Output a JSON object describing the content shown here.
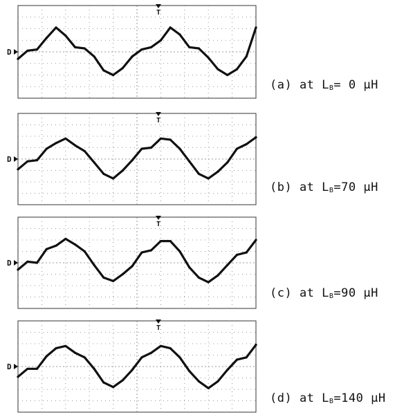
{
  "chart_data": [
    {
      "type": "line",
      "caption": {
        "prefix": "(a) at L",
        "sub": "B",
        "suffix": "= 0 μH"
      },
      "markers": {
        "trigger": "T",
        "ground": "D"
      },
      "grid": true,
      "axes": {
        "xlim": [
          0,
          10
        ],
        "ylim": [
          -4,
          4
        ]
      },
      "series": [
        {
          "x": [
            0.0,
            0.4,
            0.8,
            1.2,
            1.6,
            2.0,
            2.4,
            2.8,
            3.2,
            3.6,
            4.0,
            4.4,
            4.8,
            5.2,
            5.6,
            6.0,
            6.4,
            6.8,
            7.2,
            7.6,
            8.0,
            8.4,
            8.8,
            9.2,
            9.6,
            10.0
          ],
          "y": [
            -0.6,
            0.1,
            0.2,
            1.2,
            2.1,
            1.4,
            0.4,
            0.3,
            -0.4,
            -1.6,
            -2.0,
            -1.4,
            -0.4,
            0.2,
            0.4,
            1.0,
            2.1,
            1.5,
            0.4,
            0.3,
            -0.5,
            -1.5,
            -2.0,
            -1.5,
            -0.4,
            2.1
          ]
        }
      ]
    },
    {
      "type": "line",
      "caption": {
        "prefix": "(b) at L",
        "sub": "B",
        "suffix": "=70 μH"
      },
      "markers": {
        "trigger": "T",
        "ground": "D"
      },
      "grid": true,
      "axes": {
        "xlim": [
          0,
          10
        ],
        "ylim": [
          -4,
          4
        ]
      },
      "series": [
        {
          "x": [
            0.0,
            0.4,
            0.8,
            1.2,
            1.6,
            2.0,
            2.4,
            2.8,
            3.2,
            3.6,
            4.0,
            4.4,
            4.8,
            5.2,
            5.6,
            6.0,
            6.4,
            6.8,
            7.2,
            7.6,
            8.0,
            8.4,
            8.8,
            9.2,
            9.6,
            10.0
          ],
          "y": [
            -0.9,
            -0.2,
            -0.1,
            0.9,
            1.4,
            1.8,
            1.2,
            0.7,
            -0.3,
            -1.3,
            -1.7,
            -1.0,
            -0.1,
            0.9,
            1.0,
            1.8,
            1.7,
            0.9,
            -0.2,
            -1.3,
            -1.7,
            -1.1,
            -0.3,
            0.9,
            1.3,
            1.9
          ]
        }
      ]
    },
    {
      "type": "line",
      "caption": {
        "prefix": "(c) at L",
        "sub": "B",
        "suffix": "=90 μH"
      },
      "markers": {
        "trigger": "T",
        "ground": "D"
      },
      "grid": true,
      "axes": {
        "xlim": [
          0,
          10
        ],
        "ylim": [
          -4,
          4
        ]
      },
      "series": [
        {
          "x": [
            0.0,
            0.4,
            0.8,
            1.2,
            1.6,
            2.0,
            2.4,
            2.8,
            3.2,
            3.6,
            4.0,
            4.4,
            4.8,
            5.2,
            5.6,
            6.0,
            6.4,
            6.8,
            7.2,
            7.6,
            8.0,
            8.4,
            8.8,
            9.2,
            9.6,
            10.0
          ],
          "y": [
            -0.6,
            0.1,
            0.0,
            1.2,
            1.5,
            2.1,
            1.6,
            1.0,
            -0.2,
            -1.3,
            -1.6,
            -1.0,
            -0.3,
            0.9,
            1.1,
            1.9,
            1.9,
            1.0,
            -0.4,
            -1.3,
            -1.7,
            -1.1,
            -0.2,
            0.7,
            0.9,
            2.0
          ]
        }
      ]
    },
    {
      "type": "line",
      "caption": {
        "prefix": "(d) at L",
        "sub": "B",
        "suffix": "=140 μH"
      },
      "markers": {
        "trigger": "T",
        "ground": "D"
      },
      "grid": true,
      "axes": {
        "xlim": [
          0,
          10
        ],
        "ylim": [
          -4,
          4
        ]
      },
      "series": [
        {
          "x": [
            0.0,
            0.4,
            0.8,
            1.2,
            1.6,
            2.0,
            2.4,
            2.8,
            3.2,
            3.6,
            4.0,
            4.4,
            4.8,
            5.2,
            5.6,
            6.0,
            6.4,
            6.8,
            7.2,
            7.6,
            8.0,
            8.4,
            8.8,
            9.2,
            9.6,
            10.0
          ],
          "y": [
            -0.9,
            -0.2,
            -0.2,
            0.9,
            1.6,
            1.8,
            1.2,
            0.8,
            -0.2,
            -1.4,
            -1.8,
            -1.2,
            -0.3,
            0.8,
            1.2,
            1.8,
            1.6,
            0.8,
            -0.4,
            -1.3,
            -1.9,
            -1.3,
            -0.3,
            0.6,
            0.8,
            1.9
          ]
        }
      ]
    }
  ]
}
